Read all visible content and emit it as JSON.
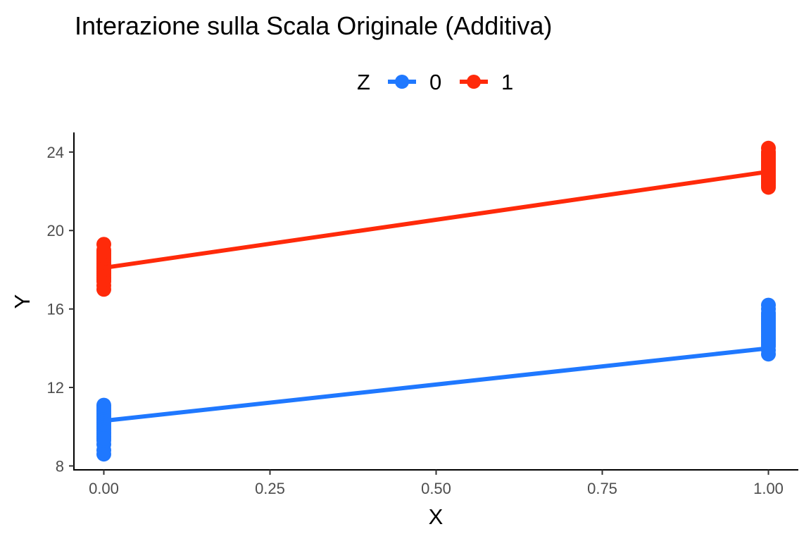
{
  "chart_data": {
    "type": "line",
    "title": "Interazione sulla Scala Originale (Additiva)",
    "xlabel": "X",
    "ylabel": "Y",
    "xlim": [
      -0.045,
      1.045
    ],
    "ylim": [
      7.8,
      25.0
    ],
    "x_ticks": [
      0.0,
      0.25,
      0.5,
      0.75,
      1.0
    ],
    "x_tick_labels": [
      "0.00",
      "0.25",
      "0.50",
      "0.75",
      "1.00"
    ],
    "y_ticks": [
      8,
      12,
      16,
      20,
      24
    ],
    "y_tick_labels": [
      "8",
      "12",
      "16",
      "20",
      "24"
    ],
    "grid": false,
    "legend": {
      "title": "Z",
      "position": "top"
    },
    "series": [
      {
        "name": "0",
        "color": "#1f78ff",
        "line": {
          "x": [
            0,
            1
          ],
          "y": [
            10.3,
            14.0
          ]
        },
        "points": {
          "x": [
            0,
            0,
            0,
            0,
            0,
            0,
            0,
            0,
            0,
            0,
            0,
            0,
            0,
            0,
            0,
            0,
            0,
            0,
            0,
            0,
            0,
            0,
            1,
            1,
            1,
            1,
            1,
            1,
            1,
            1,
            1,
            1,
            1,
            1,
            1,
            1,
            1,
            1,
            1,
            1,
            1,
            1,
            1,
            1
          ],
          "y": [
            8.6,
            8.8,
            9.1,
            9.3,
            9.5,
            9.6,
            9.7,
            9.8,
            9.9,
            10.0,
            10.1,
            10.2,
            10.3,
            10.4,
            10.5,
            10.6,
            10.7,
            10.8,
            10.9,
            11.0,
            11.1,
            9.4,
            13.7,
            13.9,
            14.1,
            14.3,
            14.4,
            14.5,
            14.6,
            14.7,
            14.8,
            14.9,
            15.0,
            15.1,
            15.2,
            15.3,
            15.4,
            15.5,
            15.6,
            15.7,
            15.8,
            16.0,
            16.2,
            14.2
          ]
        }
      },
      {
        "name": "1",
        "color": "#ff2a0a",
        "line": {
          "x": [
            0,
            1
          ],
          "y": [
            18.1,
            23.0
          ]
        },
        "points": {
          "x": [
            0,
            0,
            0,
            0,
            0,
            0,
            0,
            0,
            0,
            0,
            0,
            0,
            0,
            0,
            0,
            0,
            0,
            0,
            0,
            0,
            1,
            1,
            1,
            1,
            1,
            1,
            1,
            1,
            1,
            1,
            1,
            1,
            1,
            1,
            1,
            1,
            1,
            1,
            1,
            1
          ],
          "y": [
            17.0,
            17.2,
            17.4,
            17.5,
            17.6,
            17.7,
            17.8,
            17.9,
            18.0,
            18.1,
            18.2,
            18.3,
            18.4,
            18.5,
            18.6,
            18.7,
            18.8,
            18.9,
            19.0,
            19.3,
            22.2,
            22.3,
            22.4,
            22.5,
            22.6,
            22.7,
            22.8,
            22.9,
            23.0,
            23.1,
            23.2,
            23.3,
            23.4,
            23.5,
            23.6,
            23.7,
            23.8,
            23.9,
            24.0,
            24.2
          ]
        }
      }
    ]
  }
}
